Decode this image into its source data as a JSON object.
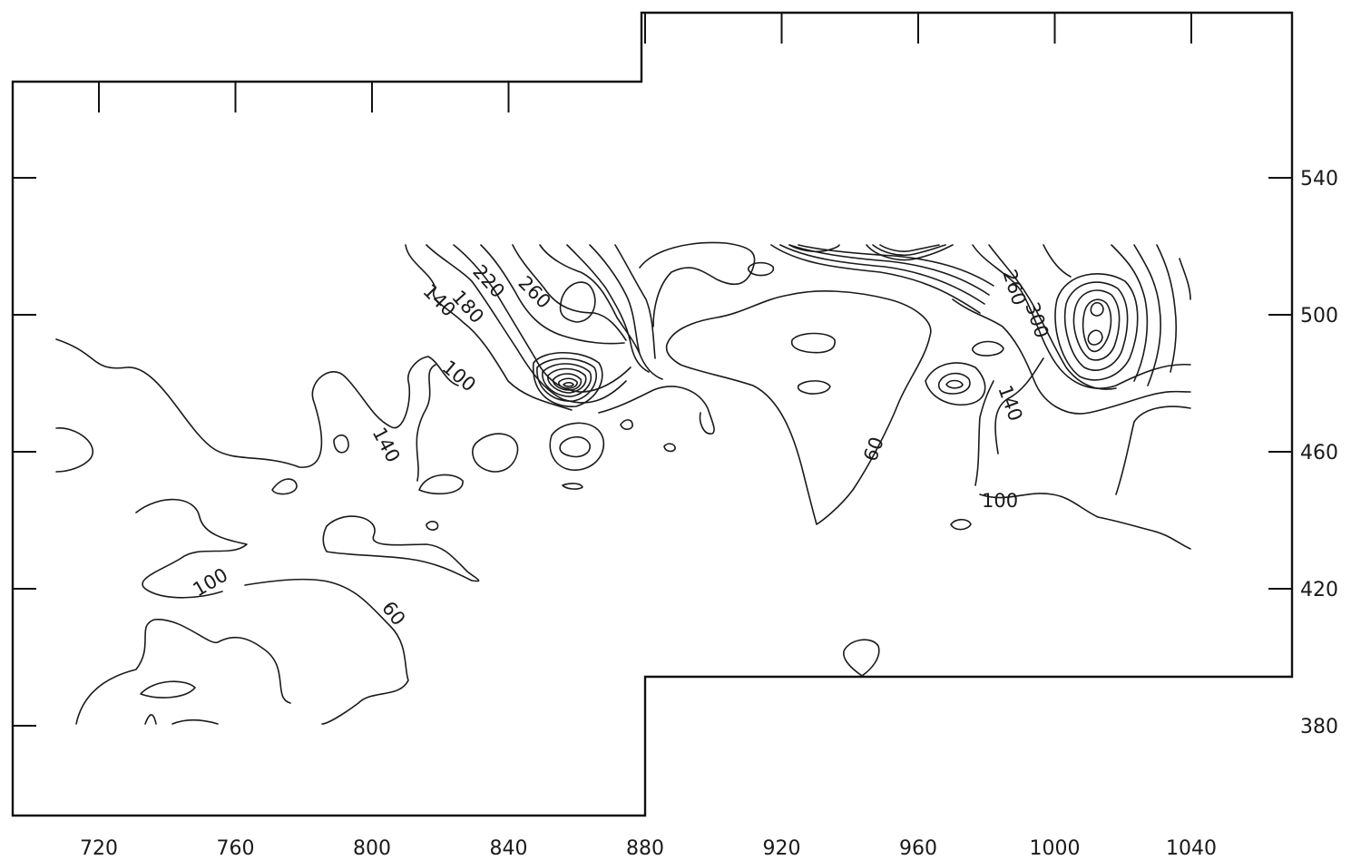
{
  "chart_data": {
    "type": "contour",
    "x_ticks": [
      720,
      760,
      800,
      840,
      880,
      920,
      960,
      1000,
      1040
    ],
    "y_ticks": [
      380,
      420,
      460,
      500,
      540
    ],
    "xlim": [
      700,
      1050
    ],
    "ylim": [
      370,
      560
    ],
    "contour_levels": [
      60,
      100,
      140,
      180,
      220,
      260,
      300
    ],
    "contour_labels": [
      "60",
      "60",
      "100",
      "100",
      "100",
      "140",
      "140",
      "140",
      "180",
      "220",
      "260",
      "260",
      "300"
    ],
    "grid": false,
    "legend": "none"
  }
}
